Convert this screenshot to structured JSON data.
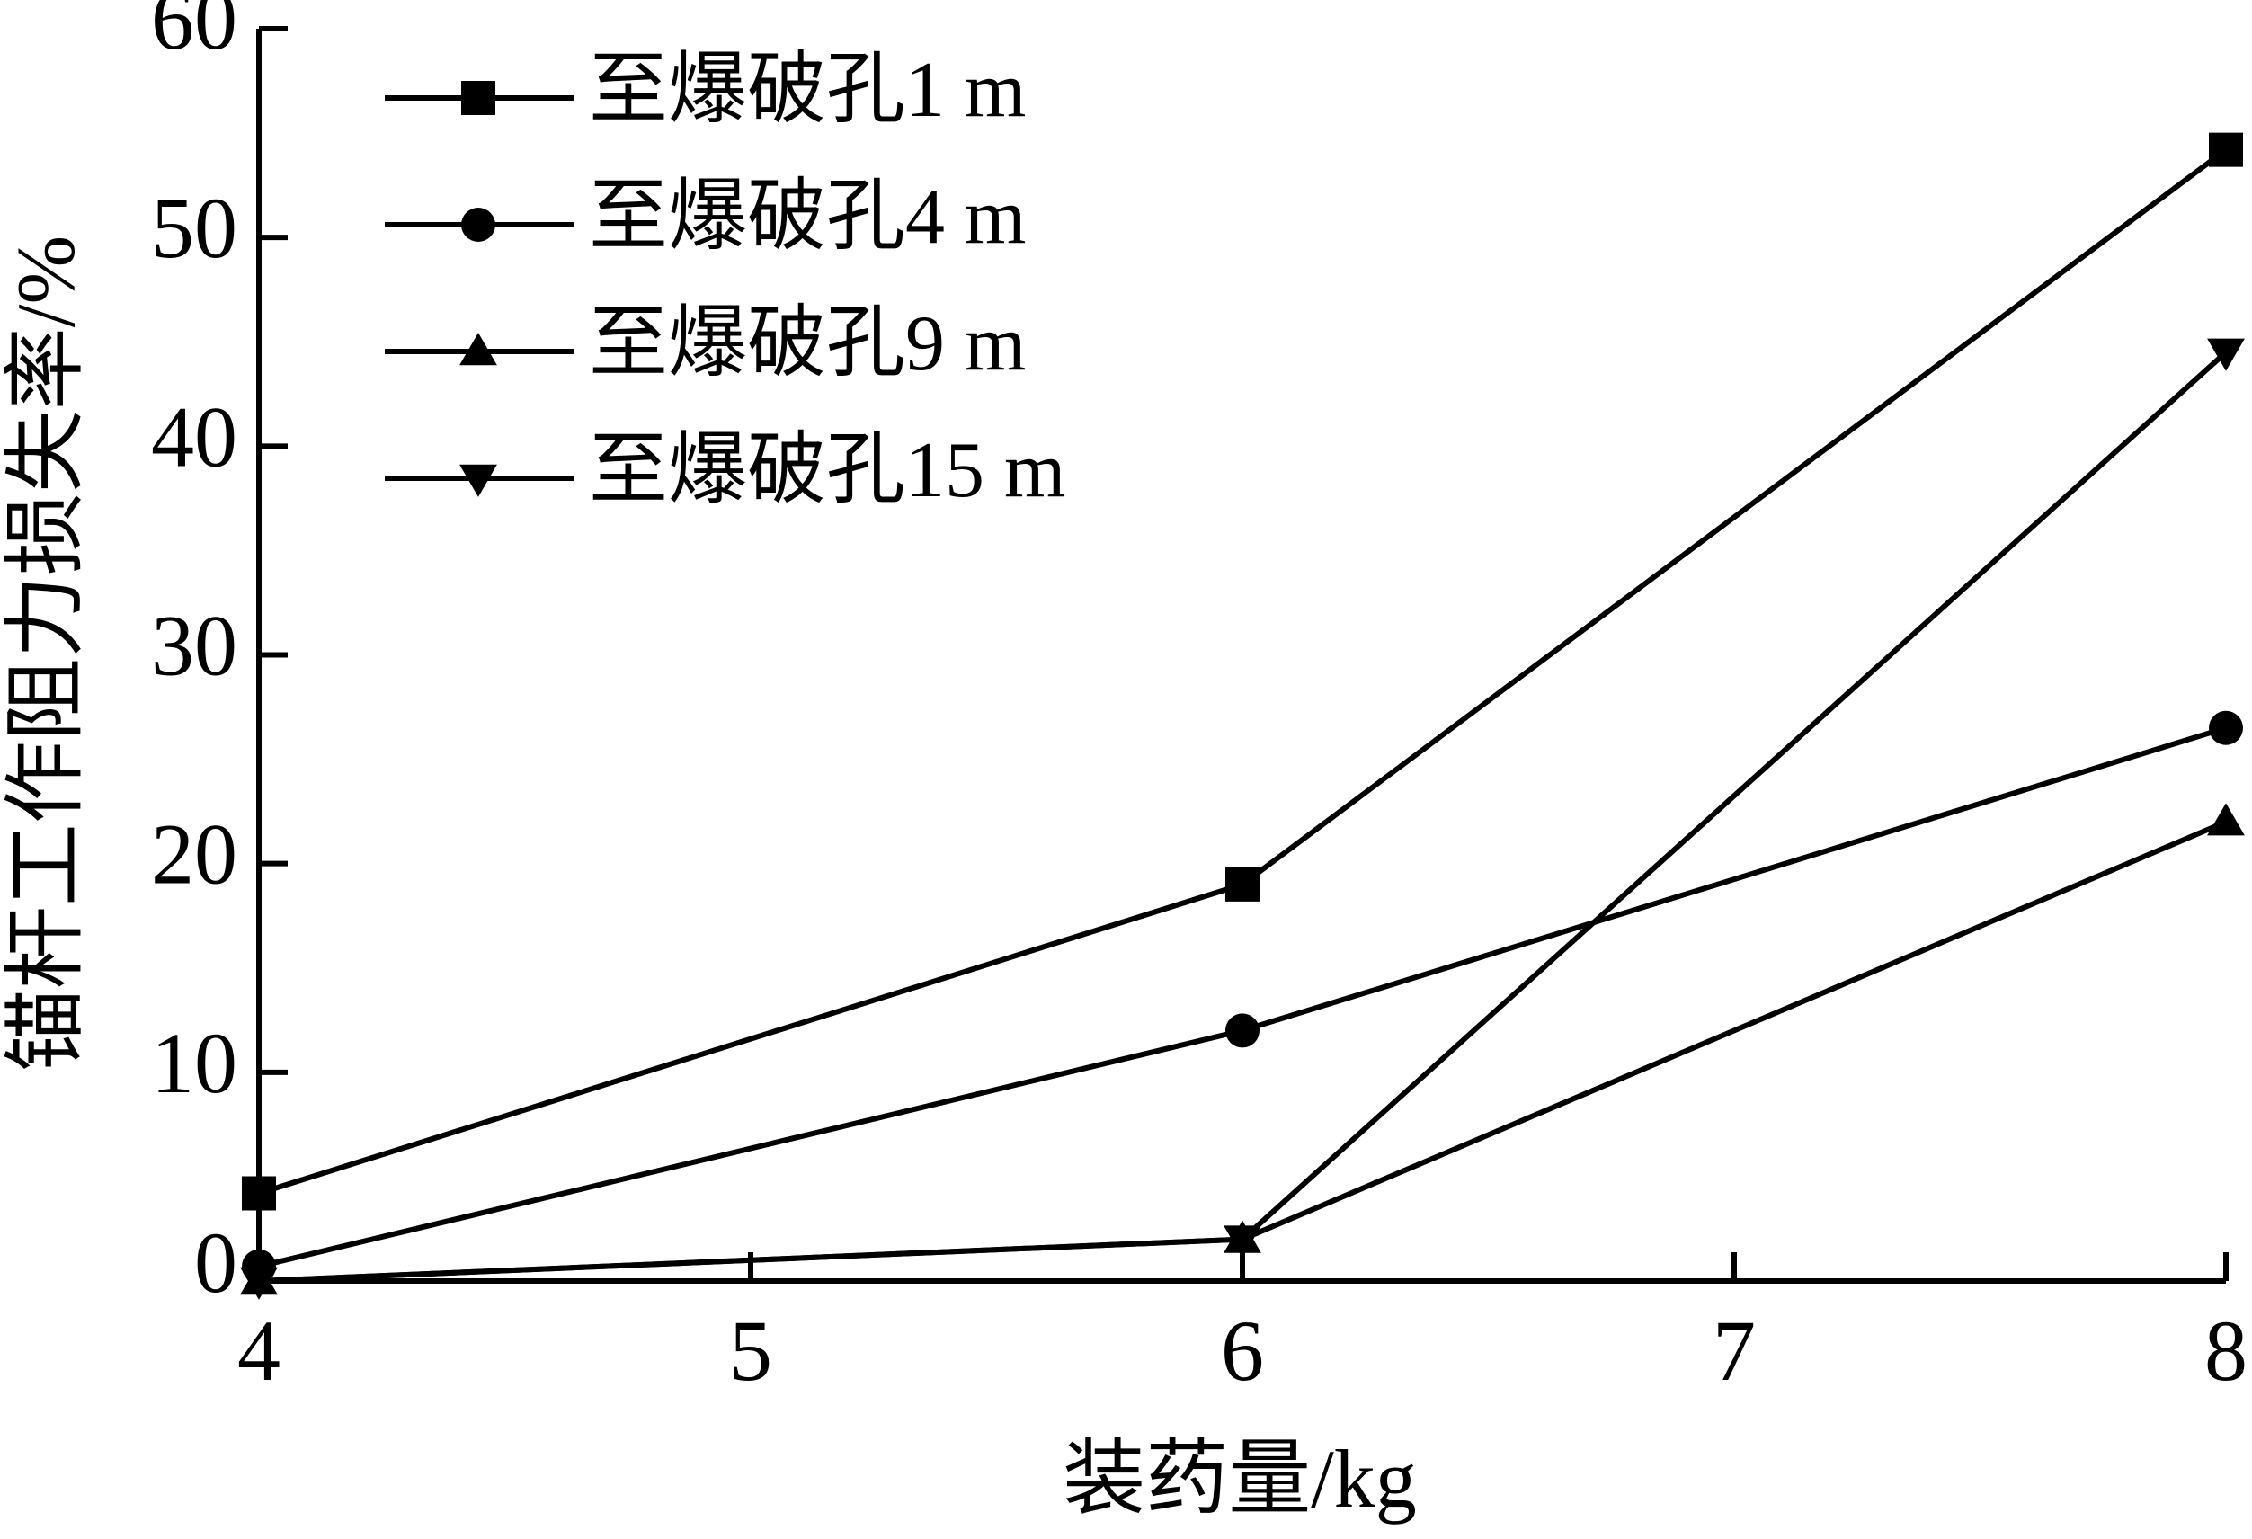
{
  "chart_data": {
    "type": "line",
    "xlabel": "装药量/kg",
    "ylabel": "锚杆工作阻力损失率/%",
    "x": [
      4,
      6,
      8
    ],
    "series": [
      {
        "name": "至爆破孔1 m",
        "color": "#000000",
        "marker": "square",
        "values": [
          4.2,
          19,
          54.2
        ]
      },
      {
        "name": "至爆破孔4 m",
        "color": "#000000",
        "marker": "circle",
        "values": [
          0.7,
          12,
          26.5
        ]
      },
      {
        "name": "至爆破孔9 m",
        "color": "#000000",
        "marker": "triangle-up",
        "values": [
          0,
          2,
          22
        ]
      },
      {
        "name": "至爆破孔15 m",
        "color": "#000000",
        "marker": "triangle-down",
        "values": [
          0,
          2,
          44.5
        ]
      }
    ],
    "xlim": [
      4,
      8
    ],
    "xticks": [
      4,
      5,
      6,
      7,
      8
    ],
    "ylim": [
      0,
      60
    ],
    "yticks": [
      0,
      10,
      20,
      30,
      40,
      50,
      60
    ],
    "legend": "upper left"
  }
}
